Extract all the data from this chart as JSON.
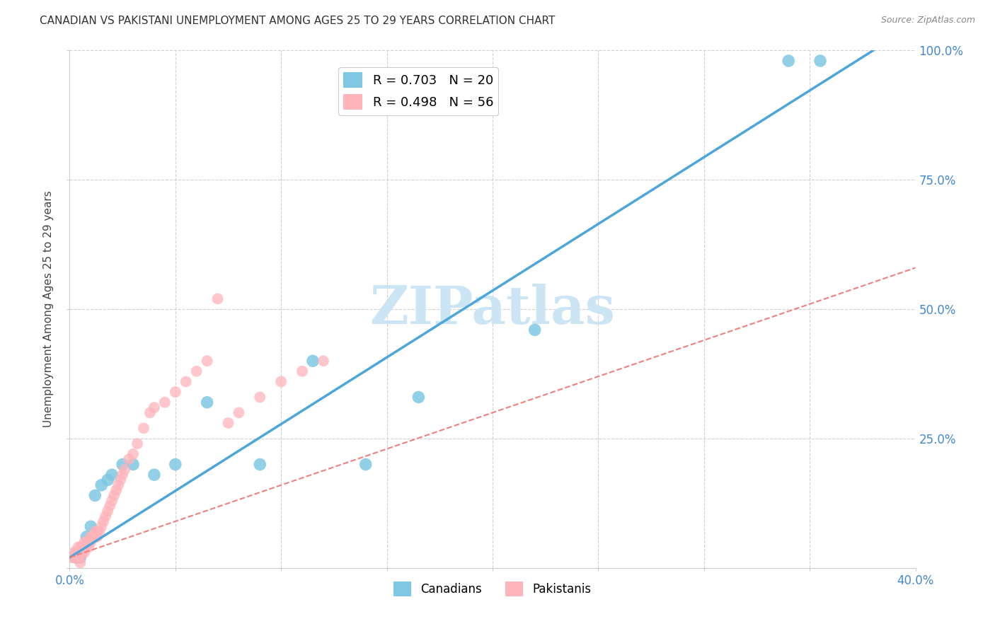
{
  "title": "CANADIAN VS PAKISTANI UNEMPLOYMENT AMONG AGES 25 TO 29 YEARS CORRELATION CHART",
  "source": "Source: ZipAtlas.com",
  "ylabel": "Unemployment Among Ages 25 to 29 years",
  "xlim": [
    0.0,
    0.4
  ],
  "ylim": [
    0.0,
    1.0
  ],
  "xticks": [
    0.0,
    0.05,
    0.1,
    0.15,
    0.2,
    0.25,
    0.3,
    0.35,
    0.4
  ],
  "yticks": [
    0.0,
    0.25,
    0.5,
    0.75,
    1.0
  ],
  "xtick_labels": [
    "0.0%",
    "",
    "",
    "",
    "",
    "",
    "",
    "",
    "40.0%"
  ],
  "ytick_labels_right": [
    "",
    "25.0%",
    "50.0%",
    "75.0%",
    "100.0%"
  ],
  "canadian_R": 0.703,
  "canadian_N": 20,
  "pakistani_R": 0.498,
  "pakistani_N": 56,
  "canadian_color": "#7ec8e3",
  "pakistani_color": "#ffb3ba",
  "canadian_line_color": "#4da6d9",
  "pakistani_line_color": "#f08080",
  "watermark": "ZIPatlas",
  "watermark_color": "#cce5f5",
  "background_color": "#ffffff",
  "grid_color": "#d0d0d0",
  "canadians_x": [
    0.003,
    0.005,
    0.008,
    0.01,
    0.012,
    0.015,
    0.018,
    0.02,
    0.025,
    0.03,
    0.04,
    0.05,
    0.065,
    0.09,
    0.115,
    0.14,
    0.165,
    0.22,
    0.34,
    0.355
  ],
  "canadians_y": [
    0.02,
    0.02,
    0.06,
    0.08,
    0.14,
    0.16,
    0.17,
    0.18,
    0.2,
    0.2,
    0.18,
    0.2,
    0.32,
    0.2,
    0.4,
    0.2,
    0.33,
    0.46,
    0.98,
    0.98
  ],
  "pakistanis_x": [
    0.001,
    0.002,
    0.002,
    0.003,
    0.003,
    0.004,
    0.004,
    0.005,
    0.005,
    0.005,
    0.006,
    0.006,
    0.007,
    0.007,
    0.008,
    0.008,
    0.009,
    0.009,
    0.01,
    0.01,
    0.011,
    0.012,
    0.013,
    0.013,
    0.014,
    0.015,
    0.016,
    0.017,
    0.018,
    0.019,
    0.02,
    0.021,
    0.022,
    0.023,
    0.024,
    0.025,
    0.026,
    0.028,
    0.03,
    0.032,
    0.035,
    0.038,
    0.04,
    0.045,
    0.05,
    0.055,
    0.06,
    0.065,
    0.07,
    0.075,
    0.08,
    0.09,
    0.1,
    0.11,
    0.12,
    0.005
  ],
  "pakistanis_y": [
    0.02,
    0.02,
    0.03,
    0.02,
    0.03,
    0.02,
    0.04,
    0.02,
    0.03,
    0.04,
    0.03,
    0.04,
    0.03,
    0.05,
    0.04,
    0.05,
    0.04,
    0.05,
    0.05,
    0.06,
    0.06,
    0.07,
    0.06,
    0.07,
    0.07,
    0.08,
    0.09,
    0.1,
    0.11,
    0.12,
    0.13,
    0.14,
    0.15,
    0.16,
    0.17,
    0.18,
    0.19,
    0.21,
    0.22,
    0.24,
    0.27,
    0.3,
    0.31,
    0.32,
    0.34,
    0.36,
    0.38,
    0.4,
    0.52,
    0.28,
    0.3,
    0.33,
    0.36,
    0.38,
    0.4,
    0.01
  ]
}
